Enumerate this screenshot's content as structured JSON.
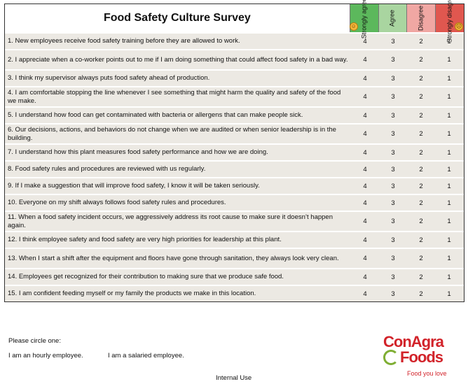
{
  "title": "Food Safety Culture Survey",
  "scale": [
    {
      "label": "Strongly agree",
      "value": "4",
      "color": "#5cb85c"
    },
    {
      "label": "Agree",
      "value": "3",
      "color": "#a9d5a0"
    },
    {
      "label": "Disagree",
      "value": "2",
      "color": "#f0a7a3"
    },
    {
      "label": "Strongly disagree",
      "value": "1",
      "color": "#e0574f"
    }
  ],
  "questions": [
    "1.  New employees receive food safety training before they are allowed to work.",
    "2.  I appreciate when a co-worker points out to me if I am doing something that could affect food safety in a bad way.",
    "3.  I think my supervisor always puts food safety ahead of production.",
    "4.  I am comfortable stopping the line whenever I see something that might harm the quality and safety of the food we make.",
    "5.  I understand how food can get contaminated with bacteria or allergens that can make people sick.",
    "6.  Our decisions, actions, and behaviors do not change when we are audited or when senior leadership is in the building.",
    "7.  I understand how this plant measures food safety performance and how we are doing.",
    "8.  Food safety rules and procedures are reviewed with us regularly.",
    "9.  If I make a suggestion that will improve food safety, I know it will be taken seriously.",
    "10.  Everyone on my shift always follows food safety rules and procedures.",
    "11.  When a food safety incident occurs, we aggressively address its root cause to make sure it doesn’t happen again.",
    "12.  I think employee safety and food safety are very high priorities for leadership at this plant.",
    "13.  When I start a shift after the equipment and floors have gone through sanitation, they always look very clean.",
    "14.  Employees get recognized for their contribution to making sure that we produce safe food.",
    "15.  I am confident feeding myself or my family the products we make in this location."
  ],
  "footer": {
    "circle_prompt": "Please circle one:",
    "hourly": "I am an hourly employee.",
    "salaried": "I am a salaried employee.",
    "internal": "Internal Use"
  },
  "logo": {
    "line1": "ConAgra",
    "line2": "Foods",
    "tagline": "Food you love"
  }
}
